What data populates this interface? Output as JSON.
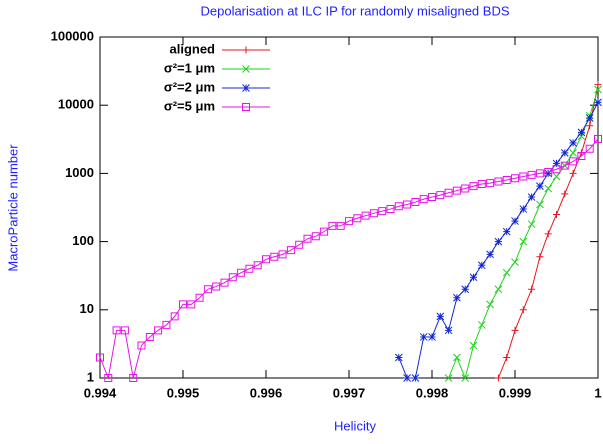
{
  "chart_data": {
    "type": "line",
    "title": "Depolarisation at ILC IP for randomly misaligned BDS",
    "x_label": "Helicity",
    "y_label": "MacroParticle number",
    "log_y": true,
    "legend": "top left",
    "xlim": [
      0.994,
      1
    ],
    "xticks": [
      0.994,
      0.995,
      0.996,
      0.997,
      0.998,
      0.999,
      1
    ],
    "ylim": [
      1,
      100000
    ],
    "yticks": [
      1,
      10,
      100,
      1000,
      10000,
      100000
    ],
    "x": [
      0.994,
      0.9941,
      0.9942,
      0.9943,
      0.9944,
      0.9945,
      0.9946,
      0.9947,
      0.9948,
      0.9949,
      0.995,
      0.9951,
      0.9952,
      0.9953,
      0.9954,
      0.9955,
      0.9956,
      0.9957,
      0.9958,
      0.9959,
      0.996,
      0.9961,
      0.9962,
      0.9963,
      0.9964,
      0.9965,
      0.9966,
      0.9967,
      0.9968,
      0.9969,
      0.997,
      0.9971,
      0.9972,
      0.9973,
      0.9974,
      0.9975,
      0.9976,
      0.9977,
      0.9978,
      0.9979,
      0.998,
      0.9981,
      0.9982,
      0.9983,
      0.9984,
      0.9985,
      0.9986,
      0.9987,
      0.9988,
      0.9989,
      0.999,
      0.9991,
      0.9992,
      0.9993,
      0.9994,
      0.9995,
      0.9996,
      0.9997,
      0.9998,
      0.9999,
      1
    ],
    "series": [
      {
        "name": "aligned",
        "color": "#e8141e",
        "marker": "plus",
        "values": [
          null,
          null,
          null,
          null,
          null,
          null,
          null,
          null,
          null,
          null,
          null,
          null,
          null,
          null,
          null,
          null,
          null,
          null,
          null,
          null,
          null,
          null,
          null,
          null,
          null,
          null,
          null,
          null,
          null,
          null,
          null,
          null,
          null,
          null,
          null,
          null,
          null,
          null,
          null,
          null,
          null,
          null,
          null,
          null,
          null,
          null,
          null,
          null,
          1,
          2,
          5,
          10,
          20,
          60,
          130,
          250,
          500,
          1000,
          2000,
          5000,
          20000
        ]
      },
      {
        "name": "σ²=1 μm",
        "color": "#22d21e",
        "marker": "cross",
        "values": [
          null,
          null,
          null,
          null,
          null,
          null,
          null,
          null,
          null,
          null,
          null,
          null,
          null,
          null,
          null,
          null,
          null,
          null,
          null,
          null,
          null,
          null,
          null,
          null,
          null,
          null,
          null,
          null,
          null,
          null,
          null,
          null,
          null,
          null,
          null,
          null,
          null,
          null,
          null,
          null,
          null,
          null,
          1,
          2,
          1,
          3,
          6,
          12,
          20,
          35,
          50,
          100,
          180,
          350,
          600,
          900,
          1300,
          2000,
          3500,
          7000,
          17000
        ]
      },
      {
        "name": "σ²=2 μm",
        "color": "#1428d2",
        "marker": "star",
        "values": [
          null,
          null,
          null,
          null,
          null,
          null,
          null,
          null,
          null,
          null,
          null,
          null,
          null,
          null,
          null,
          null,
          null,
          null,
          null,
          null,
          null,
          null,
          null,
          null,
          null,
          null,
          null,
          null,
          null,
          null,
          null,
          null,
          null,
          null,
          null,
          null,
          2,
          1,
          1,
          4,
          4,
          8,
          5,
          15,
          20,
          30,
          45,
          65,
          100,
          140,
          200,
          300,
          450,
          650,
          1000,
          1400,
          2000,
          2800,
          4000,
          6500,
          11000
        ]
      },
      {
        "name": "σ²=5 μm",
        "color": "#e614e6",
        "marker": "square",
        "values": [
          2,
          1,
          5,
          5,
          1,
          3,
          4,
          5,
          6,
          8,
          12,
          12,
          15,
          20,
          22,
          25,
          30,
          35,
          40,
          45,
          55,
          60,
          65,
          75,
          90,
          110,
          120,
          140,
          170,
          170,
          200,
          220,
          240,
          260,
          280,
          300,
          330,
          350,
          380,
          420,
          450,
          480,
          520,
          560,
          600,
          650,
          700,
          720,
          760,
          800,
          850,
          900,
          950,
          1000,
          1050,
          1150,
          1300,
          1500,
          1800,
          2300,
          3200
        ]
      }
    ]
  }
}
